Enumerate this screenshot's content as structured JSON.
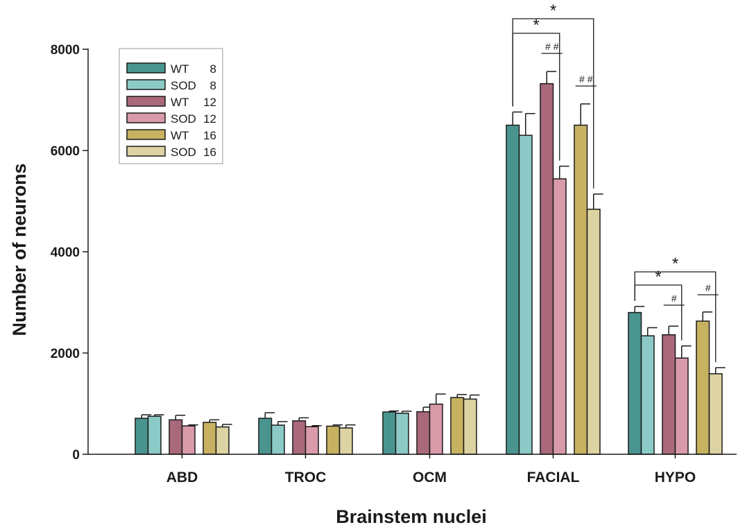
{
  "chart_data": {
    "type": "bar",
    "xlabel": "Brainstem nuclei",
    "ylabel": "Number of neurons",
    "ylim": [
      0,
      8000
    ],
    "yticks": [
      "0",
      "2000",
      "4000",
      "6000",
      "8000"
    ],
    "categories": [
      "ABD",
      "TROC",
      "OCM",
      "FACIAL",
      "HYPO"
    ],
    "series": [
      {
        "group": "WT",
        "age": "8",
        "color": "#4a9490",
        "values": [
          710,
          710,
          835,
          6500,
          2800
        ],
        "errors": [
          70,
          110,
          20,
          260,
          120
        ]
      },
      {
        "group": "SOD",
        "age": "8",
        "color": "#8ccac7",
        "values": [
          750,
          575,
          810,
          6300,
          2340
        ],
        "errors": [
          30,
          70,
          40,
          430,
          160
        ]
      },
      {
        "group": "WT",
        "age": "12",
        "color": "#a9697a",
        "values": [
          680,
          660,
          840,
          7320,
          2360
        ],
        "errors": [
          90,
          60,
          90,
          240,
          170
        ]
      },
      {
        "group": "SOD",
        "age": "12",
        "color": "#d99aaa",
        "values": [
          560,
          545,
          990,
          5440,
          1900
        ],
        "errors": [
          20,
          20,
          200,
          250,
          240
        ]
      },
      {
        "group": "WT",
        "age": "16",
        "color": "#c7b262",
        "values": [
          630,
          555,
          1120,
          6500,
          2630
        ],
        "errors": [
          50,
          25,
          60,
          420,
          180
        ]
      },
      {
        "group": "SOD",
        "age": "16",
        "color": "#ddd3a2",
        "values": [
          540,
          520,
          1090,
          4840,
          1590
        ],
        "errors": [
          50,
          60,
          80,
          300,
          120
        ]
      }
    ],
    "significance": [
      {
        "category": "FACIAL",
        "symbol": "*",
        "from_series": 0,
        "to_series": 3
      },
      {
        "category": "FACIAL",
        "symbol": "*",
        "from_series": 0,
        "to_series": 5
      },
      {
        "category": "FACIAL",
        "symbol": "# #",
        "from_series": 2,
        "to_series": 3
      },
      {
        "category": "FACIAL",
        "symbol": "# #",
        "from_series": 4,
        "to_series": 5
      },
      {
        "category": "HYPO",
        "symbol": "*",
        "from_series": 0,
        "to_series": 3
      },
      {
        "category": "HYPO",
        "symbol": "*",
        "from_series": 0,
        "to_series": 5
      },
      {
        "category": "HYPO",
        "symbol": "#",
        "from_series": 2,
        "to_series": 3
      },
      {
        "category": "HYPO",
        "symbol": "#",
        "from_series": 4,
        "to_series": 5
      }
    ],
    "legend_position": "top-left",
    "grid": false
  }
}
